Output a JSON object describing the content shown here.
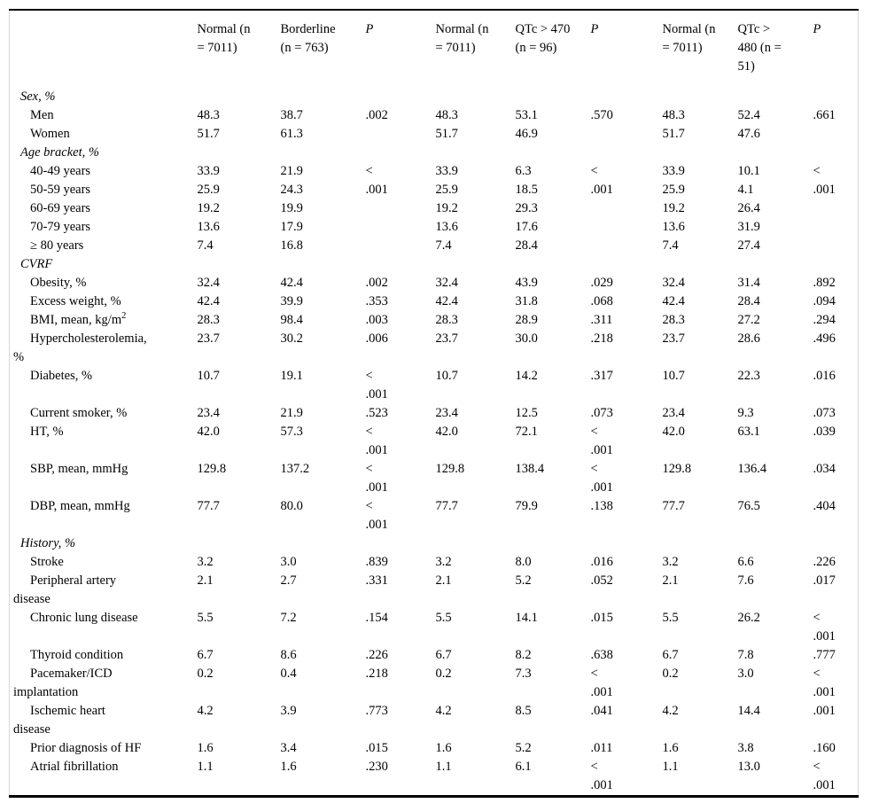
{
  "colors": {
    "background": "#ffffff",
    "text": "#000000",
    "rule_border": "#000000",
    "side_border": "#d9d9d9"
  },
  "table": {
    "columns": [
      {
        "label": ""
      },
      {
        "label": "Normal (n\n= 7011)"
      },
      {
        "label": "Borderline\n(n = 763)"
      },
      {
        "label": "P",
        "italic": true
      },
      {
        "label": "Normal (n\n= 7011)"
      },
      {
        "label": "QTc > 470\n(n = 96)"
      },
      {
        "label": "P",
        "italic": true
      },
      {
        "label": "Normal (n\n= 7011)"
      },
      {
        "label": "QTc >\n480 (n =\n51)"
      },
      {
        "label": "P",
        "italic": true
      }
    ],
    "sections": [
      {
        "header": "Sex, %",
        "rows": [
          {
            "label": "Men",
            "cells": [
              {
                "t": "48.3"
              },
              {
                "t": "38.7"
              },
              {
                "t": ".002",
                "rs": 2,
                "mid": true
              },
              {
                "t": "48.3"
              },
              {
                "t": "53.1"
              },
              {
                "t": ".570",
                "rs": 2,
                "mid": true
              },
              {
                "t": "48.3"
              },
              {
                "t": "52.4"
              },
              {
                "t": ".661",
                "rs": 2,
                "mid": true
              }
            ]
          },
          {
            "label": "Women",
            "cells": [
              {
                "t": "51.7"
              },
              {
                "t": "61.3"
              },
              null,
              {
                "t": "51.7"
              },
              {
                "t": "46.9"
              },
              null,
              {
                "t": "51.7"
              },
              {
                "t": "47.6"
              },
              null
            ]
          }
        ]
      },
      {
        "header": "Age bracket, %",
        "rows": [
          {
            "label": "40-49 years",
            "cells": [
              {
                "t": "33.9"
              },
              {
                "t": "21.9"
              },
              {
                "t": "<\n.001",
                "rs": 5,
                "mid": true
              },
              {
                "t": "33.9"
              },
              {
                "t": "6.3"
              },
              {
                "t": "<\n.001",
                "rs": 5,
                "mid": true
              },
              {
                "t": "33.9"
              },
              {
                "t": "10.1"
              },
              {
                "t": "<\n.001",
                "rs": 5,
                "mid": true
              }
            ]
          },
          {
            "label": "50-59 years",
            "cells": [
              {
                "t": "25.9"
              },
              {
                "t": "24.3"
              },
              null,
              {
                "t": "25.9"
              },
              {
                "t": "18.5"
              },
              null,
              {
                "t": "25.9"
              },
              {
                "t": "4.1"
              },
              null
            ]
          },
          {
            "label": "60-69 years",
            "cells": [
              {
                "t": "19.2"
              },
              {
                "t": "19.9"
              },
              null,
              {
                "t": "19.2"
              },
              {
                "t": "29.3"
              },
              null,
              {
                "t": "19.2"
              },
              {
                "t": "26.4"
              },
              null
            ]
          },
          {
            "label": "70-79 years",
            "cells": [
              {
                "t": "13.6"
              },
              {
                "t": "17.9"
              },
              null,
              {
                "t": "13.6"
              },
              {
                "t": "17.6"
              },
              null,
              {
                "t": "13.6"
              },
              {
                "t": "31.9"
              },
              null
            ]
          },
          {
            "label": "≥ 80 years",
            "cells": [
              {
                "t": "7.4"
              },
              {
                "t": "16.8"
              },
              null,
              {
                "t": "7.4"
              },
              {
                "t": "28.4"
              },
              null,
              {
                "t": "7.4"
              },
              {
                "t": "27.4"
              },
              null
            ]
          }
        ]
      },
      {
        "header": "CVRF",
        "rows": [
          {
            "label": "Obesity, %",
            "cells": [
              {
                "t": "32.4"
              },
              {
                "t": "42.4"
              },
              {
                "t": ".002"
              },
              {
                "t": "32.4"
              },
              {
                "t": "43.9"
              },
              {
                "t": ".029"
              },
              {
                "t": "32.4"
              },
              {
                "t": "31.4"
              },
              {
                "t": ".892"
              }
            ]
          },
          {
            "label": "Excess weight, %",
            "cells": [
              {
                "t": "42.4"
              },
              {
                "t": "39.9"
              },
              {
                "t": ".353"
              },
              {
                "t": "42.4"
              },
              {
                "t": "31.8"
              },
              {
                "t": ".068"
              },
              {
                "t": "42.4"
              },
              {
                "t": "28.4"
              },
              {
                "t": ".094"
              }
            ]
          },
          {
            "label": "BMI, mean, kg/m",
            "label_sup": "2",
            "cells": [
              {
                "t": "28.3"
              },
              {
                "t": "98.4"
              },
              {
                "t": ".003"
              },
              {
                "t": "28.3"
              },
              {
                "t": "28.9"
              },
              {
                "t": ".311"
              },
              {
                "t": "28.3"
              },
              {
                "t": "27.2"
              },
              {
                "t": ".294"
              }
            ]
          },
          {
            "label": "Hypercholesterolemia,\n%",
            "cells": [
              {
                "t": "23.7"
              },
              {
                "t": "30.2"
              },
              {
                "t": ".006"
              },
              {
                "t": "23.7"
              },
              {
                "t": "30.0"
              },
              {
                "t": ".218"
              },
              {
                "t": "23.7"
              },
              {
                "t": "28.6"
              },
              {
                "t": ".496"
              }
            ]
          },
          {
            "label": "Diabetes, %",
            "cells": [
              {
                "t": "10.7"
              },
              {
                "t": "19.1"
              },
              {
                "t": "<\n.001"
              },
              {
                "t": "10.7"
              },
              {
                "t": "14.2"
              },
              {
                "t": ".317"
              },
              {
                "t": "10.7"
              },
              {
                "t": "22.3"
              },
              {
                "t": ".016"
              }
            ]
          },
          {
            "label": "Current smoker, %",
            "cells": [
              {
                "t": "23.4"
              },
              {
                "t": "21.9"
              },
              {
                "t": ".523"
              },
              {
                "t": "23.4"
              },
              {
                "t": "12.5"
              },
              {
                "t": ".073"
              },
              {
                "t": "23.4"
              },
              {
                "t": "9.3"
              },
              {
                "t": ".073"
              }
            ]
          },
          {
            "label": "HT, %",
            "cells": [
              {
                "t": "42.0"
              },
              {
                "t": "57.3"
              },
              {
                "t": "<\n.001"
              },
              {
                "t": "42.0"
              },
              {
                "t": "72.1"
              },
              {
                "t": "<\n.001"
              },
              {
                "t": "42.0"
              },
              {
                "t": "63.1"
              },
              {
                "t": ".039"
              }
            ]
          },
          {
            "label": "SBP, mean, mmHg",
            "cells": [
              {
                "t": "129.8"
              },
              {
                "t": "137.2"
              },
              {
                "t": "<\n.001"
              },
              {
                "t": "129.8"
              },
              {
                "t": "138.4"
              },
              {
                "t": "<\n.001"
              },
              {
                "t": "129.8"
              },
              {
                "t": "136.4"
              },
              {
                "t": ".034"
              }
            ]
          },
          {
            "label": "DBP, mean, mmHg",
            "cells": [
              {
                "t": "77.7"
              },
              {
                "t": "80.0"
              },
              {
                "t": "<\n.001"
              },
              {
                "t": "77.7"
              },
              {
                "t": "79.9"
              },
              {
                "t": ".138"
              },
              {
                "t": "77.7"
              },
              {
                "t": "76.5"
              },
              {
                "t": ".404"
              }
            ]
          }
        ]
      },
      {
        "header": "History, %",
        "rows": [
          {
            "label": "Stroke",
            "cells": [
              {
                "t": "3.2"
              },
              {
                "t": "3.0"
              },
              {
                "t": ".839"
              },
              {
                "t": "3.2"
              },
              {
                "t": "8.0"
              },
              {
                "t": ".016"
              },
              {
                "t": "3.2"
              },
              {
                "t": "6.6"
              },
              {
                "t": ".226"
              }
            ]
          },
          {
            "label": "Peripheral artery\ndisease",
            "cells": [
              {
                "t": "2.1"
              },
              {
                "t": "2.7"
              },
              {
                "t": ".331"
              },
              {
                "t": "2.1"
              },
              {
                "t": "5.2"
              },
              {
                "t": ".052"
              },
              {
                "t": "2.1"
              },
              {
                "t": "7.6"
              },
              {
                "t": ".017"
              }
            ]
          },
          {
            "label": "Chronic lung disease",
            "cells": [
              {
                "t": "5.5"
              },
              {
                "t": "7.2"
              },
              {
                "t": ".154"
              },
              {
                "t": "5.5"
              },
              {
                "t": "14.1"
              },
              {
                "t": ".015"
              },
              {
                "t": "5.5"
              },
              {
                "t": "26.2"
              },
              {
                "t": "<\n.001"
              }
            ]
          },
          {
            "label": "Thyroid condition",
            "cells": [
              {
                "t": "6.7"
              },
              {
                "t": "8.6"
              },
              {
                "t": ".226"
              },
              {
                "t": "6.7"
              },
              {
                "t": "8.2"
              },
              {
                "t": ".638"
              },
              {
                "t": "6.7"
              },
              {
                "t": "7.8"
              },
              {
                "t": ".777"
              }
            ]
          },
          {
            "label": "Pacemaker/ICD\nimplantation",
            "cells": [
              {
                "t": "0.2"
              },
              {
                "t": "0.4"
              },
              {
                "t": ".218"
              },
              {
                "t": "0.2"
              },
              {
                "t": "7.3"
              },
              {
                "t": "<\n.001"
              },
              {
                "t": "0.2"
              },
              {
                "t": "3.0"
              },
              {
                "t": "<\n.001"
              }
            ]
          },
          {
            "label": "Ischemic heart\ndisease",
            "cells": [
              {
                "t": "4.2"
              },
              {
                "t": "3.9"
              },
              {
                "t": ".773"
              },
              {
                "t": "4.2"
              },
              {
                "t": "8.5"
              },
              {
                "t": ".041"
              },
              {
                "t": "4.2"
              },
              {
                "t": "14.4"
              },
              {
                "t": ".001"
              }
            ]
          },
          {
            "label": "Prior diagnosis of HF",
            "cells": [
              {
                "t": "1.6"
              },
              {
                "t": "3.4"
              },
              {
                "t": ".015"
              },
              {
                "t": "1.6"
              },
              {
                "t": "5.2"
              },
              {
                "t": ".011"
              },
              {
                "t": "1.6"
              },
              {
                "t": "3.8"
              },
              {
                "t": ".160"
              }
            ]
          },
          {
            "label": "Atrial fibrillation",
            "cells": [
              {
                "t": "1.1"
              },
              {
                "t": "1.6"
              },
              {
                "t": ".230"
              },
              {
                "t": "1.1"
              },
              {
                "t": "6.1"
              },
              {
                "t": "<\n.001"
              },
              {
                "t": "1.1"
              },
              {
                "t": "13.0"
              },
              {
                "t": "<\n.001"
              }
            ]
          }
        ]
      }
    ]
  }
}
